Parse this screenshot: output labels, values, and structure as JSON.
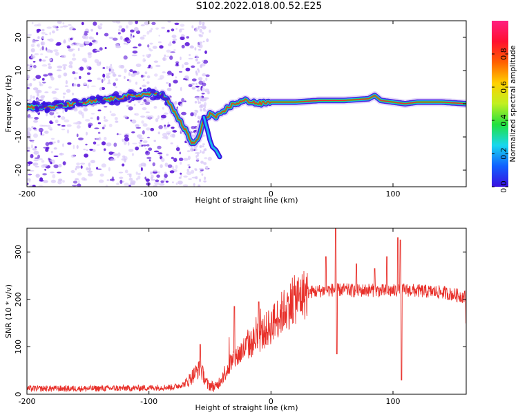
{
  "page": {
    "title": "S102.2022.018.00.52.E25"
  },
  "colors": {
    "snr_line": "#e8302a",
    "ridge_core": "#e8302a",
    "ridge_inner": "#22e040",
    "ridge_mid": "#18b8ee",
    "ridge_outer": "#3a10e0",
    "scatter_strong": "#5a14d8",
    "scatter_faint": "#d8c8f8"
  },
  "chart_data": [
    {
      "id": "spectrogram",
      "type": "heatmap",
      "xlabel": "Height of straight line (km)",
      "ylabel": "Frequency (Hz)",
      "xlim": [
        -200,
        160
      ],
      "ylim": [
        -25,
        25
      ],
      "xticks": [
        -200,
        -100,
        0,
        100
      ],
      "yticks": [
        -20,
        -10,
        0,
        10,
        20
      ],
      "colorbar": {
        "label": "Normalized spectral amplitude",
        "range": [
          0,
          1
        ],
        "ticks": [
          "0.0",
          "0.2",
          "0.4",
          "0.6",
          "0.8"
        ],
        "colormap": [
          "#3a10e0",
          "#1060ff",
          "#18d8ee",
          "#22e040",
          "#c0f020",
          "#ffd000",
          "#ff6000",
          "#ff1030",
          "#ff2080"
        ]
      },
      "ridge": {
        "x": [
          -200,
          -180,
          -160,
          -140,
          -120,
          -100,
          -90,
          -85,
          -80,
          -75,
          -70,
          -65,
          -60,
          -55,
          -50,
          -45,
          -40,
          -35,
          -30,
          -20,
          -10,
          0,
          20,
          40,
          60,
          80,
          85,
          90,
          100,
          110,
          120,
          140,
          160
        ],
        "y": [
          -1,
          -1,
          0,
          1,
          2,
          3,
          3,
          1,
          -2,
          -5,
          -8,
          -12,
          -11,
          -5,
          -3,
          -4,
          -3,
          -1,
          0,
          1,
          0,
          0.5,
          0.5,
          1,
          1,
          1.5,
          2.5,
          1,
          0.5,
          0,
          0.5,
          0.5,
          0
        ]
      },
      "branch": {
        "x": [
          -55,
          -52,
          -50,
          -48,
          -45,
          -42
        ],
        "y": [
          -4,
          -8,
          -11,
          -13,
          -14,
          -16
        ]
      }
    },
    {
      "id": "snr",
      "type": "line",
      "xlabel": "Height of straight line (km)",
      "ylabel": "SNR (10 * v/v)",
      "xlim": [
        -200,
        160
      ],
      "ylim": [
        0,
        350
      ],
      "xticks": [
        -200,
        -100,
        0,
        100
      ],
      "yticks": [
        0,
        100,
        200,
        300
      ],
      "envelope": {
        "x": [
          -200,
          -150,
          -110,
          -80,
          -70,
          -62,
          -58,
          -52,
          -45,
          -38,
          -30,
          -20,
          -10,
          0,
          10,
          20,
          30,
          40,
          50,
          60,
          70,
          80,
          90,
          100,
          110,
          120,
          140,
          160
        ],
        "y": [
          12,
          12,
          13,
          15,
          22,
          45,
          55,
          20,
          15,
          45,
          75,
          100,
          120,
          145,
          175,
          200,
          215,
          218,
          220,
          220,
          218,
          220,
          218,
          218,
          220,
          218,
          215,
          205
        ]
      },
      "spikes": [
        {
          "x": -58,
          "y": 105
        },
        {
          "x": -30,
          "y": 185
        },
        {
          "x": -10,
          "y": 195
        },
        {
          "x": 45,
          "y": 290
        },
        {
          "x": 53,
          "y": 350
        },
        {
          "x": 54,
          "y": 85
        },
        {
          "x": 70,
          "y": 275
        },
        {
          "x": 85,
          "y": 265
        },
        {
          "x": 95,
          "y": 290
        },
        {
          "x": 104,
          "y": 330
        },
        {
          "x": 107,
          "y": 30
        },
        {
          "x": 106,
          "y": 325
        },
        {
          "x": 160,
          "y": 150
        }
      ]
    }
  ]
}
